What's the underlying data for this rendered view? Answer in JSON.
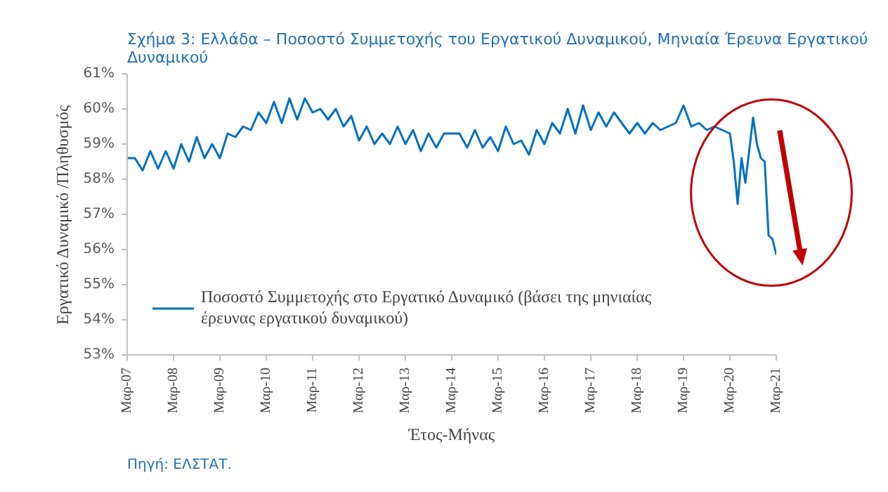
{
  "chart_data": {
    "type": "line",
    "title": "Σχήμα 3: Ελλάδα – Ποσοστό Συμμετοχής του Εργατικού Δυναμικού, Μηνιαία Έρευνα Εργατικού Δυναμικού",
    "xlabel": "Έτος-Μήνας",
    "ylabel": "Εργατικό Δυναμικό /Πληθυσμός",
    "annotations": [
      "Πηγή: ΕΛΣΤΑΤ."
    ],
    "x": [
      "2007-03",
      "2007-05",
      "2007-07",
      "2007-09",
      "2007-11",
      "2008-01",
      "2008-03",
      "2008-05",
      "2008-07",
      "2008-09",
      "2008-11",
      "2009-01",
      "2009-03",
      "2009-05",
      "2009-07",
      "2009-09",
      "2009-11",
      "2010-01",
      "2010-03",
      "2010-05",
      "2010-07",
      "2010-09",
      "2010-11",
      "2011-01",
      "2011-03",
      "2011-05",
      "2011-07",
      "2011-09",
      "2011-11",
      "2012-01",
      "2012-03",
      "2012-05",
      "2012-07",
      "2012-09",
      "2012-11",
      "2013-01",
      "2013-03",
      "2013-05",
      "2013-07",
      "2013-09",
      "2013-11",
      "2014-01",
      "2014-03",
      "2014-05",
      "2014-07",
      "2014-09",
      "2014-11",
      "2015-01",
      "2015-03",
      "2015-05",
      "2015-07",
      "2015-09",
      "2015-11",
      "2016-01",
      "2016-03",
      "2016-05",
      "2016-07",
      "2016-09",
      "2016-11",
      "2017-01",
      "2017-03",
      "2017-05",
      "2017-07",
      "2017-09",
      "2017-11",
      "2018-01",
      "2018-03",
      "2018-05",
      "2018-07",
      "2018-09",
      "2018-11",
      "2019-01",
      "2019-03",
      "2019-05",
      "2019-07",
      "2019-09",
      "2019-11",
      "2020-01",
      "2020-03",
      "2020-04",
      "2020-05",
      "2020-06",
      "2020-07",
      "2020-09",
      "2020-10",
      "2020-11",
      "2020-12",
      "2021-01",
      "2021-02",
      "2021-03"
    ],
    "series": [
      {
        "name": "Ποσοστό Συμμετοχής στο Εργατικό Δυναμικό (βάσει της μηνιαίας έρευνας εργατικού δυναμικού)",
        "color": "#0070c0",
        "values": [
          58.6,
          58.6,
          58.25,
          58.8,
          58.3,
          58.8,
          58.3,
          59.0,
          58.5,
          59.2,
          58.6,
          59.0,
          58.6,
          59.3,
          59.2,
          59.5,
          59.4,
          59.9,
          59.6,
          60.2,
          59.6,
          60.3,
          59.7,
          60.3,
          59.9,
          60.0,
          59.7,
          60.0,
          59.5,
          59.8,
          59.1,
          59.5,
          59.0,
          59.3,
          59.0,
          59.5,
          59.0,
          59.4,
          58.8,
          59.3,
          58.9,
          59.3,
          59.3,
          59.3,
          58.9,
          59.4,
          58.9,
          59.2,
          58.8,
          59.5,
          59.0,
          59.1,
          58.7,
          59.4,
          59.0,
          59.6,
          59.3,
          60.0,
          59.3,
          60.1,
          59.4,
          59.9,
          59.5,
          59.9,
          59.6,
          59.3,
          59.6,
          59.3,
          59.6,
          59.4,
          59.5,
          59.6,
          60.1,
          59.5,
          59.6,
          59.4,
          59.5,
          59.4,
          59.3,
          58.5,
          57.3,
          58.6,
          57.9,
          59.75,
          59.0,
          58.6,
          58.5,
          56.4,
          56.3,
          55.85
        ]
      }
    ],
    "xlim": [
      "2007-03",
      "2021-03"
    ],
    "xticks": [
      {
        "value": "2007-03",
        "label": "Μαρ-07"
      },
      {
        "value": "2008-03",
        "label": "Μαρ-08"
      },
      {
        "value": "2009-03",
        "label": "Μαρ-09"
      },
      {
        "value": "2010-03",
        "label": "Μαρ-10"
      },
      {
        "value": "2011-03",
        "label": "Μαρ-11"
      },
      {
        "value": "2012-03",
        "label": "Μαρ-12"
      },
      {
        "value": "2013-03",
        "label": "Μαρ-13"
      },
      {
        "value": "2014-03",
        "label": "Μαρ-14"
      },
      {
        "value": "2015-03",
        "label": "Μαρ-15"
      },
      {
        "value": "2016-03",
        "label": "Μαρ-16"
      },
      {
        "value": "2017-03",
        "label": "Μαρ-17"
      },
      {
        "value": "2018-03",
        "label": "Μαρ-18"
      },
      {
        "value": "2019-03",
        "label": "Μαρ-19"
      },
      {
        "value": "2020-03",
        "label": "Μαρ-20"
      },
      {
        "value": "2021-03",
        "label": "Μαρ-21"
      }
    ],
    "ylim": [
      53,
      61
    ],
    "yticks": [
      {
        "value": 53,
        "label": "53%"
      },
      {
        "value": 54,
        "label": "54%"
      },
      {
        "value": 55,
        "label": "55%"
      },
      {
        "value": 56,
        "label": "56%"
      },
      {
        "value": 57,
        "label": "57%"
      },
      {
        "value": 58,
        "label": "58%"
      },
      {
        "value": 59,
        "label": "59%"
      },
      {
        "value": 60,
        "label": "60%"
      },
      {
        "value": 61,
        "label": "61%"
      }
    ],
    "grid": false,
    "legend": "bottom left",
    "line_style": "solid"
  }
}
